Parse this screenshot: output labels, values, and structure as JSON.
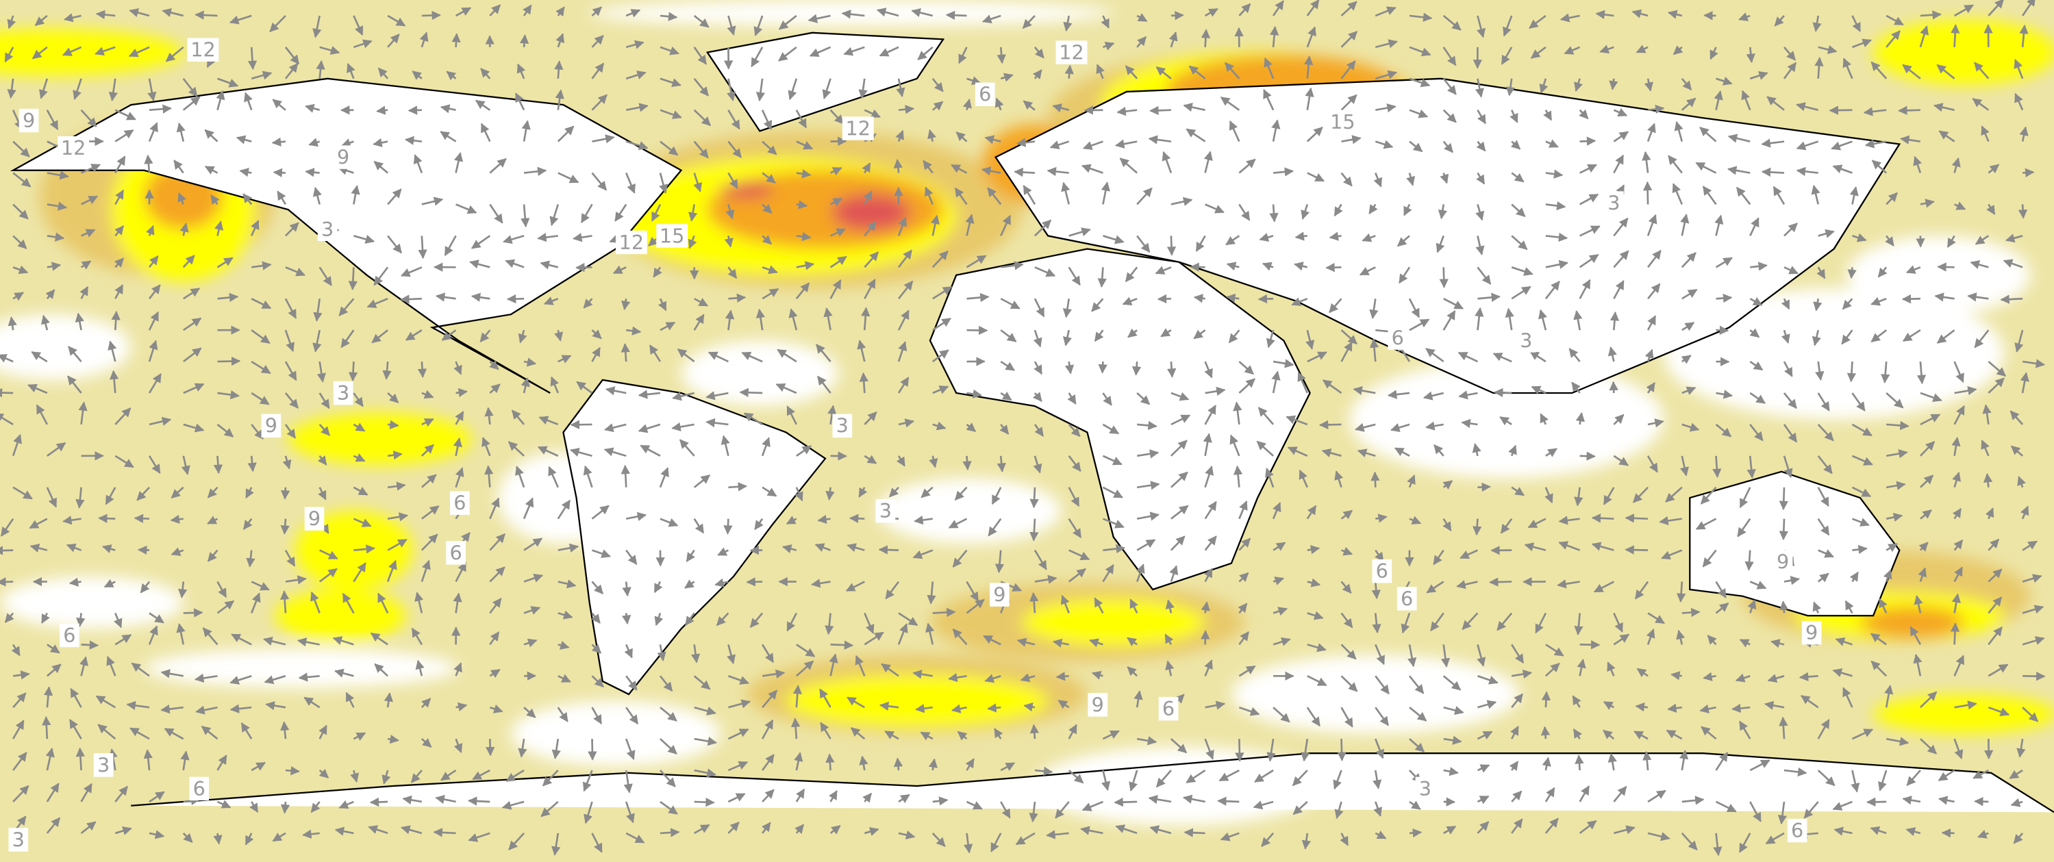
{
  "contour_labels": [
    12,
    12,
    6,
    12,
    15,
    9,
    12,
    9,
    3,
    12,
    15,
    3,
    6,
    3,
    3,
    9,
    3,
    6,
    3,
    9,
    6,
    9,
    6,
    6,
    9,
    6,
    9,
    9,
    6,
    3,
    6,
    3,
    6,
    3
  ]
}
